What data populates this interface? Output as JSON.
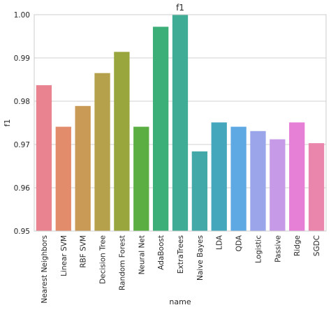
{
  "chart_data": {
    "type": "bar",
    "title": "f1",
    "xlabel": "name",
    "ylabel": "f1",
    "ylim": [
      0.95,
      1.0
    ],
    "yticks": [
      "0.95",
      "0.96",
      "0.97",
      "0.98",
      "0.99",
      "1.00"
    ],
    "grid": "horizontal",
    "categories": [
      "Nearest Neighbors",
      "Linear SVM",
      "RBF SVM",
      "Decision Tree",
      "Random Forest",
      "Neural Net",
      "AdaBoost",
      "ExtraTrees",
      "Naive Bayes",
      "LDA",
      "QDA",
      "Logistic",
      "Passive",
      "Ridge",
      "SGDC"
    ],
    "values": [
      0.9837,
      0.9741,
      0.9789,
      0.9865,
      0.9914,
      0.9741,
      0.9972,
      1.0,
      0.9684,
      0.9751,
      0.9741,
      0.9731,
      0.9712,
      0.9751,
      0.9703
    ],
    "colors": [
      "#e8838f",
      "#e28c6b",
      "#c99a55",
      "#b5a14b",
      "#98a63d",
      "#5aae42",
      "#3cae77",
      "#3fac95",
      "#42a9a8",
      "#44a7bb",
      "#5ea8e3",
      "#9aa5ea",
      "#c69ae7",
      "#e67fd6",
      "#ea86ac"
    ]
  }
}
